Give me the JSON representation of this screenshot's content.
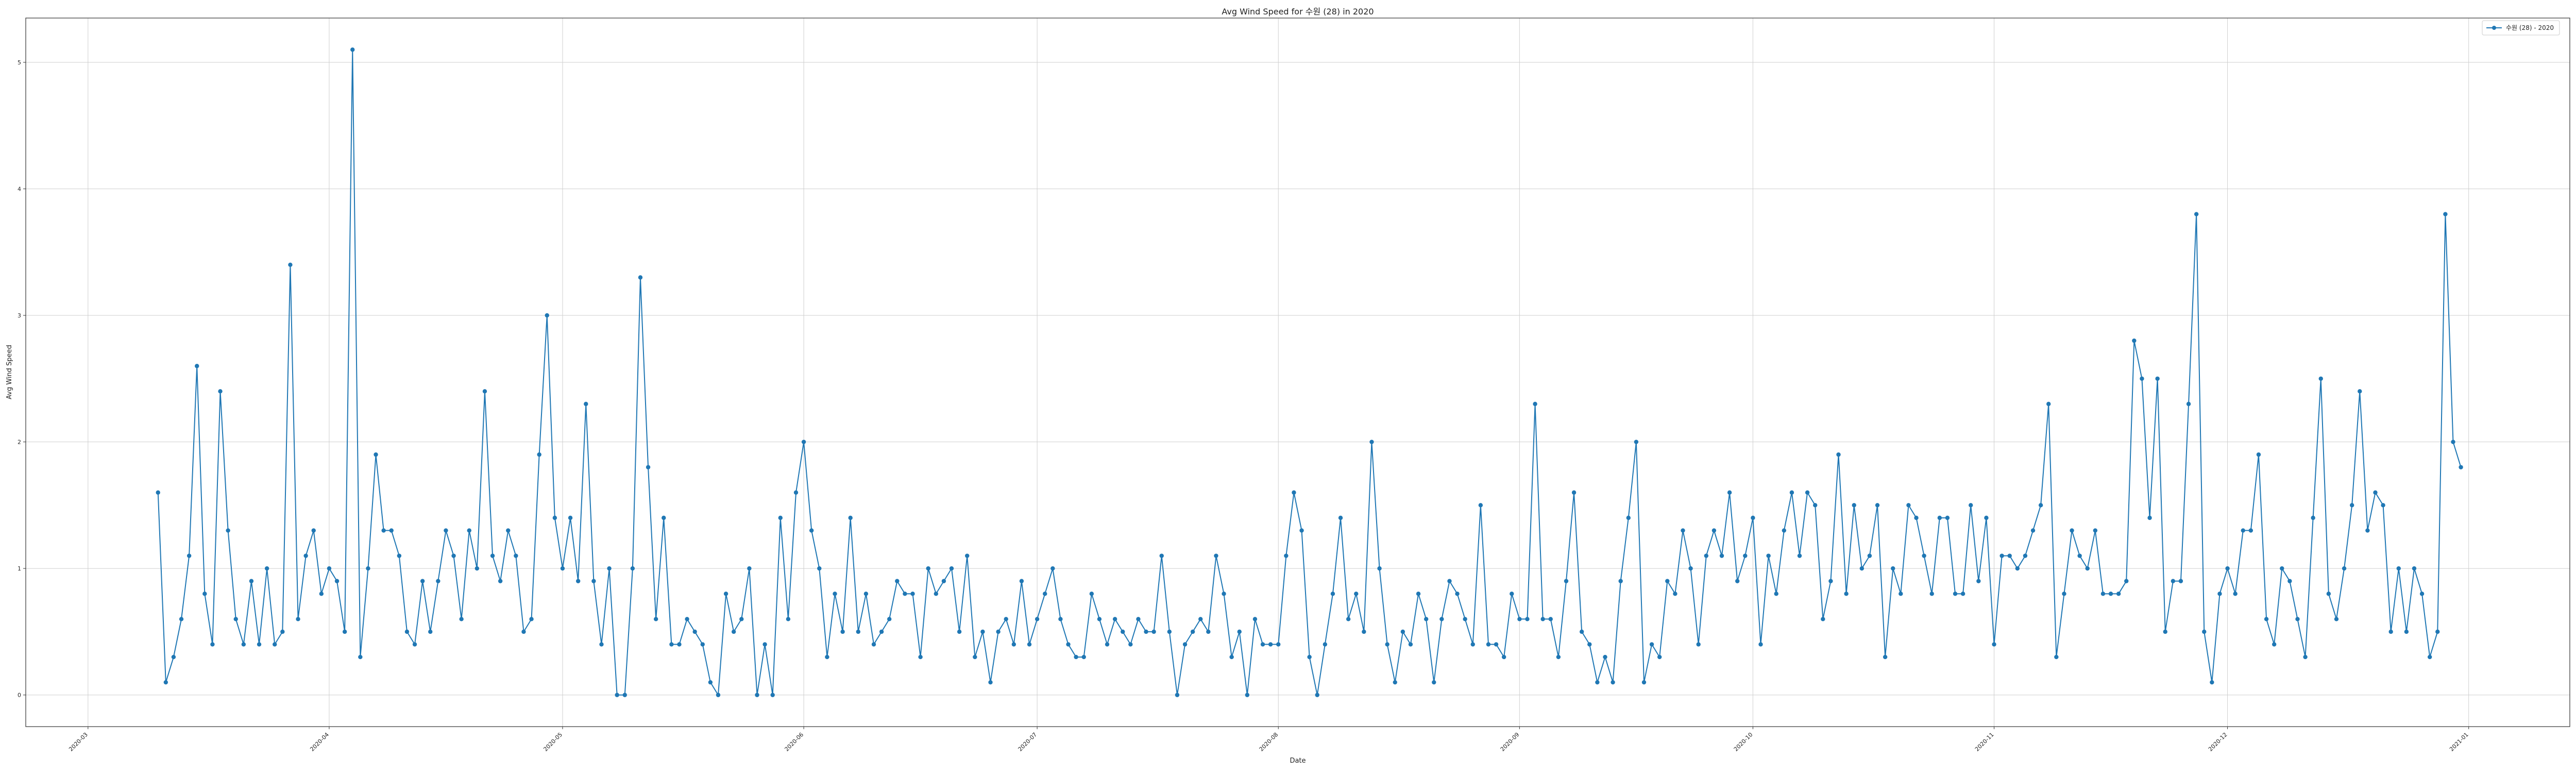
{
  "chart_data": {
    "type": "line",
    "title": "Avg Wind Speed for 수원 (28) in 2020",
    "xlabel": "Date",
    "ylabel": "Avg Wind Speed",
    "x_ticks": [
      "2020-03",
      "2020-04",
      "2020-05",
      "2020-06",
      "2020-07",
      "2020-08",
      "2020-09",
      "2020-10",
      "2020-11",
      "2020-12",
      "2021-01"
    ],
    "y_ticks": [
      0,
      1,
      2,
      3,
      4,
      5
    ],
    "xlim": [
      "2020-02-22",
      "2021-01-14"
    ],
    "ylim": [
      -0.25,
      5.35
    ],
    "grid": true,
    "legend_position": "top-right",
    "series": [
      {
        "name": "수원 (28) - 2020",
        "color": "#1f77b4",
        "marker": "circle",
        "start_date": "2020-03-10",
        "values": [
          1.6,
          0.1,
          0.3,
          0.6,
          1.1,
          2.6,
          0.8,
          0.4,
          2.4,
          1.3,
          0.6,
          0.4,
          0.9,
          0.4,
          1.0,
          0.4,
          0.5,
          3.4,
          0.6,
          1.1,
          1.3,
          0.8,
          1.0,
          0.9,
          0.5,
          5.1,
          0.3,
          1.0,
          1.9,
          1.3,
          1.3,
          1.1,
          0.5,
          0.4,
          0.9,
          0.5,
          0.9,
          1.3,
          1.1,
          0.6,
          1.3,
          1.0,
          2.4,
          1.1,
          0.9,
          1.3,
          1.1,
          0.5,
          0.6,
          1.9,
          3.0,
          1.4,
          1.0,
          1.4,
          0.9,
          2.3,
          0.9,
          0.4,
          1.0,
          0.0,
          0.0,
          1.0,
          3.3,
          1.8,
          0.6,
          1.4,
          0.4,
          0.4,
          0.6,
          0.5,
          0.4,
          0.1,
          0.0,
          0.8,
          0.5,
          0.6,
          1.0,
          0.0,
          0.4,
          0.0,
          1.4,
          0.6,
          1.6,
          2.0,
          1.3,
          1.0,
          0.3,
          0.8,
          0.5,
          1.4,
          0.5,
          0.8,
          0.4,
          0.5,
          0.6,
          0.9,
          0.8,
          0.8,
          0.3,
          1.0,
          0.8,
          0.9,
          1.0,
          0.5,
          1.1,
          0.3,
          0.5,
          0.1,
          0.5,
          0.6,
          0.4,
          0.9,
          0.4,
          0.6,
          0.8,
          1.0,
          0.6,
          0.4,
          0.3,
          0.3,
          0.8,
          0.6,
          0.4,
          0.6,
          0.5,
          0.4,
          0.6,
          0.5,
          0.5,
          1.1,
          0.5,
          0.0,
          0.4,
          0.5,
          0.6,
          0.5,
          1.1,
          0.8,
          0.3,
          0.5,
          0.0,
          0.6,
          0.4,
          0.4,
          0.4,
          1.1,
          1.6,
          1.3,
          0.3,
          0.0,
          0.4,
          0.8,
          1.4,
          0.6,
          0.8,
          0.5,
          2.0,
          1.0,
          0.4,
          0.1,
          0.5,
          0.4,
          0.8,
          0.6,
          0.1,
          0.6,
          0.9,
          0.8,
          0.6,
          0.4,
          1.5,
          0.4,
          0.4,
          0.3,
          0.8,
          0.6,
          0.6,
          2.3,
          0.6,
          0.6,
          0.3,
          0.9,
          1.6,
          0.5,
          0.4,
          0.1,
          0.3,
          0.1,
          0.9,
          1.4,
          2.0,
          0.1,
          0.4,
          0.3,
          0.9,
          0.8,
          1.3,
          1.0,
          0.4,
          1.1,
          1.3,
          1.1,
          1.6,
          0.9,
          1.1,
          1.4,
          0.4,
          1.1,
          0.8,
          1.3,
          1.6,
          1.1,
          1.6,
          1.5,
          0.6,
          0.9,
          1.9,
          0.8,
          1.5,
          1.0,
          1.1,
          1.5,
          0.3,
          1.0,
          0.8,
          1.5,
          1.4,
          1.1,
          0.8,
          1.4,
          1.4,
          0.8,
          0.8,
          1.5,
          0.9,
          1.4,
          0.4,
          1.1,
          1.1,
          1.0,
          1.1,
          1.3,
          1.5,
          2.3,
          0.3,
          0.8,
          1.3,
          1.1,
          1.0,
          1.3,
          0.8,
          0.8,
          0.8,
          0.9,
          2.8,
          2.5,
          1.4,
          2.5,
          0.5,
          0.9,
          0.9,
          2.3,
          3.8,
          0.5,
          0.1,
          0.8,
          1.0,
          0.8,
          1.3,
          1.3,
          1.9,
          0.6,
          0.4,
          1.0,
          0.9,
          0.6,
          0.3,
          1.4,
          2.5,
          0.8,
          0.6,
          1.0,
          1.5,
          2.4,
          1.3,
          1.6,
          1.5,
          0.5,
          1.0,
          0.5,
          1.0,
          0.8,
          0.3,
          0.5,
          3.8,
          2.0,
          1.8
        ]
      }
    ]
  }
}
